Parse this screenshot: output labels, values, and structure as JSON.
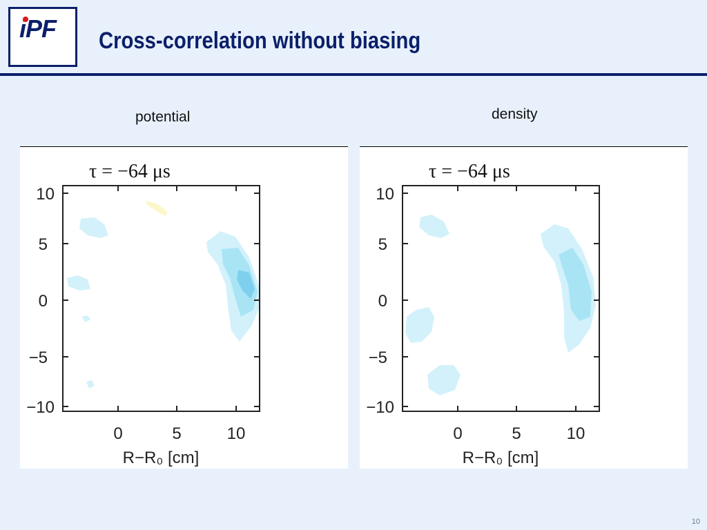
{
  "header": {
    "logo_text": "iPF",
    "title": "Cross-correlation without biasing"
  },
  "panels": [
    {
      "label": "potential",
      "plot_title": "τ = −64 μs",
      "xlabel": "R−R₀ [cm]",
      "x_ticks": [
        "0",
        "5",
        "10"
      ],
      "y_ticks": [
        "10",
        "5",
        "0",
        "−5",
        "−10"
      ]
    },
    {
      "label": "density",
      "plot_title": "τ = −64 μs",
      "xlabel": "R−R₀ [cm]",
      "x_ticks": [
        "0",
        "5",
        "10"
      ],
      "y_ticks": [
        "10",
        "5",
        "0",
        "−5",
        "−10"
      ]
    }
  ],
  "colors": {
    "navy": "#0b1f6a",
    "logo_dot": "#e3141b",
    "contour_light": "#d2f1fb",
    "contour_mid": "#a9e4f5",
    "contour_dark": "#7fd0ee",
    "contour_positive": "#fbf7c8"
  },
  "footer": {
    "page_number": "10"
  }
}
